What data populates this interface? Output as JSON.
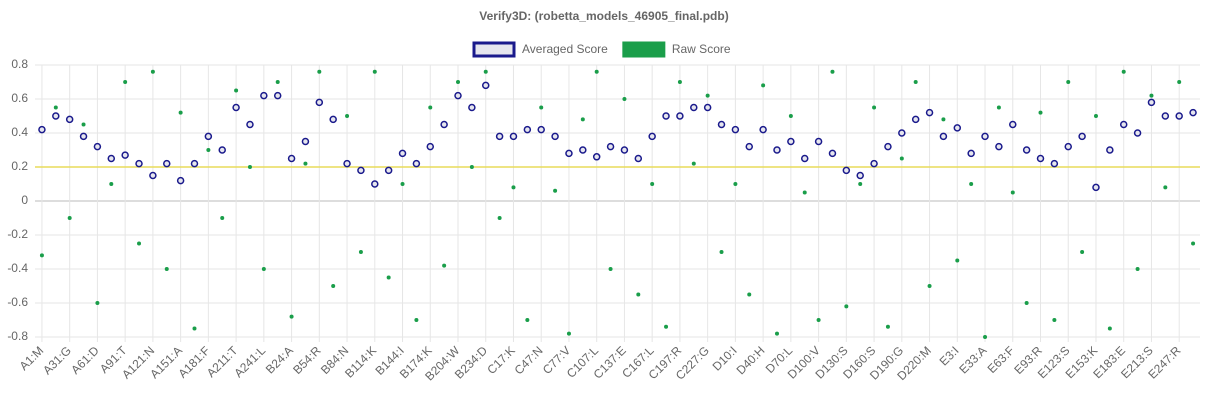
{
  "chart_data": {
    "type": "scatter",
    "title": "Verify3D:  (robetta_models_46905_final.pdb)",
    "categories": [
      "A1:M",
      null,
      "A31:G",
      null,
      "A61:D",
      null,
      "A91:T",
      null,
      "A121:N",
      null,
      "A151:A",
      null,
      "A181:F",
      null,
      "A211:T",
      null,
      "A241:L",
      null,
      "B24:A",
      null,
      "B54:R",
      null,
      "B84:N",
      null,
      "B114:K",
      null,
      "B144:I",
      null,
      "B174:K",
      null,
      "B204:W",
      null,
      "B234:D",
      null,
      "C17:K",
      null,
      "C47:N",
      null,
      "C77:V",
      null,
      "C107:L",
      null,
      "C137:E",
      null,
      "C167:L",
      null,
      "C197:R",
      null,
      "C227:G",
      null,
      "D10:I",
      null,
      "D40:H",
      null,
      "D70:L",
      null,
      "D100:V",
      null,
      "D130:S",
      null,
      "D160:S",
      null,
      "D190:G",
      null,
      "D220:M",
      null,
      "E3:I",
      null,
      "E33:A",
      null,
      "E63:F",
      null,
      "E93:R",
      null,
      "E123:S",
      null,
      "E153:K",
      null,
      "E183:E",
      null,
      "E213:S",
      null,
      "E247:R",
      null
    ],
    "series": [
      {
        "name": "Averaged Score",
        "color": "#1a1a8c",
        "fill": "#e6e6ee",
        "values": [
          0.42,
          0.5,
          0.48,
          0.38,
          0.32,
          0.25,
          0.27,
          0.22,
          0.15,
          0.22,
          0.12,
          0.22,
          0.38,
          0.3,
          0.55,
          0.45,
          0.62,
          0.62,
          0.25,
          0.35,
          0.58,
          0.48,
          0.22,
          0.18,
          0.1,
          0.18,
          0.28,
          0.22,
          0.32,
          0.45,
          0.62,
          0.55,
          0.68,
          0.38,
          0.38,
          0.42,
          0.42,
          0.38,
          0.28,
          0.3,
          0.26,
          0.32,
          0.3,
          0.25,
          0.38,
          0.5,
          0.5,
          0.55,
          0.55,
          0.45,
          0.42,
          0.32,
          0.42,
          0.3,
          0.35,
          0.25,
          0.35,
          0.28,
          0.18,
          0.15,
          0.22,
          0.32,
          0.4,
          0.48,
          0.52,
          0.38,
          0.43,
          0.28,
          0.38,
          0.32,
          0.45,
          0.3,
          0.25,
          0.22,
          0.32,
          0.38,
          0.08,
          0.3,
          0.45,
          0.4,
          0.58,
          0.5,
          0.5,
          0.52
        ]
      },
      {
        "name": "Raw Score",
        "color": "#1a9e4a",
        "values": [
          -0.32,
          0.55,
          -0.1,
          0.45,
          -0.6,
          0.1,
          0.7,
          -0.25,
          0.76,
          -0.4,
          0.52,
          -0.75,
          0.3,
          -0.1,
          0.65,
          0.2,
          -0.4,
          0.7,
          -0.68,
          0.22,
          0.76,
          -0.5,
          0.5,
          -0.3,
          0.76,
          -0.45,
          0.1,
          -0.7,
          0.55,
          -0.38,
          0.7,
          0.2,
          0.76,
          -0.1,
          0.08,
          -0.7,
          0.55,
          0.06,
          -0.78,
          0.48,
          0.76,
          -0.4,
          0.6,
          -0.55,
          0.1,
          -0.74,
          0.7,
          0.22,
          0.62,
          -0.3,
          0.1,
          -0.55,
          0.68,
          -0.78,
          0.5,
          0.05,
          -0.7,
          0.76,
          -0.62,
          0.1,
          0.55,
          -0.74,
          0.25,
          0.7,
          -0.5,
          0.48,
          -0.35,
          0.1,
          -0.8,
          0.55,
          0.05,
          -0.6,
          0.52,
          -0.7,
          0.7,
          -0.3,
          0.5,
          -0.75,
          0.76,
          -0.4,
          0.62,
          0.08,
          0.7,
          -0.25
        ]
      }
    ],
    "ylim": [
      -0.8,
      0.8
    ],
    "yticks": [
      -0.8,
      -0.6,
      -0.4,
      -0.2,
      0,
      0.2,
      0.4,
      0.6,
      0.8
    ],
    "threshold": 0.2,
    "threshold_color": "#e8dc5a",
    "grid": true,
    "legend": "top"
  }
}
